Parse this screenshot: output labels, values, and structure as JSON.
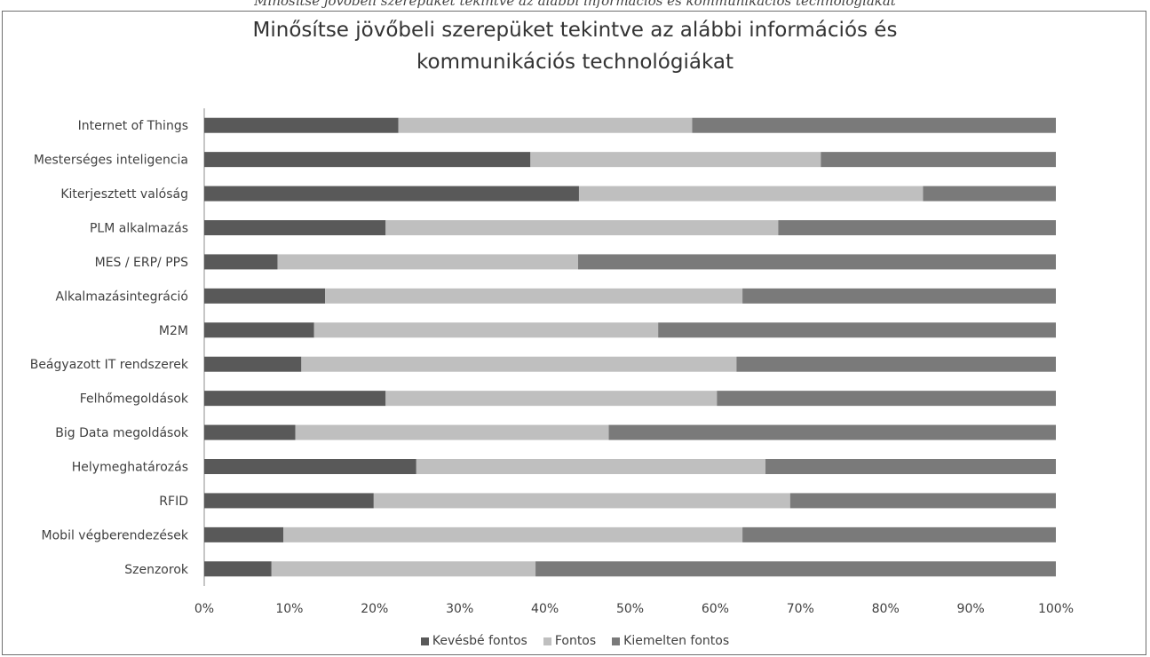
{
  "page_caption": "Minősítse jövőbeli szerepüket tekintve az alábbi információs és kommunikációs technológiákat",
  "chart_data": {
    "type": "bar",
    "orientation": "horizontal",
    "stacked": "percent",
    "title_lines": [
      "Minősítse jövőbeli szerepüket tekintve az alábbi információs és",
      "kommunikációs technológiákat"
    ],
    "categories": [
      "Internet of Things",
      "Mesterséges inteligencia",
      "Kiterjesztett valóság",
      "PLM alkalmazás",
      "MES / ERP/ PPS",
      "Alkalmazásintegráció",
      "M2M",
      "Beágyazott IT rendszerek",
      "Felhőmegoldások",
      "Big Data megoldások",
      "Helymeghatározás",
      "RFID",
      "Mobil végberendezések",
      "Szenzorok"
    ],
    "series": [
      {
        "name": "Kevésbé fontos",
        "color": "#595959",
        "values": [
          22.8,
          38.3,
          44.0,
          21.3,
          8.6,
          14.2,
          12.9,
          11.4,
          21.3,
          10.7,
          24.9,
          19.9,
          9.3,
          7.9
        ]
      },
      {
        "name": "Fontos",
        "color": "#bfbfbf",
        "values": [
          34.5,
          34.1,
          40.4,
          46.1,
          35.3,
          49.0,
          40.4,
          51.1,
          38.9,
          36.8,
          41.0,
          48.9,
          53.9,
          31.0
        ]
      },
      {
        "name": "Kiemelten fontos",
        "color": "#7a7a7a",
        "values": [
          42.7,
          27.6,
          15.6,
          32.6,
          56.1,
          36.8,
          46.7,
          37.5,
          39.8,
          52.5,
          34.1,
          31.2,
          36.8,
          61.1
        ]
      }
    ],
    "xlim": [
      0,
      100
    ],
    "xticks": [
      "0%",
      "10%",
      "20%",
      "30%",
      "40%",
      "50%",
      "60%",
      "70%",
      "80%",
      "90%",
      "100%"
    ],
    "grid": false,
    "legend_position": "bottom"
  }
}
